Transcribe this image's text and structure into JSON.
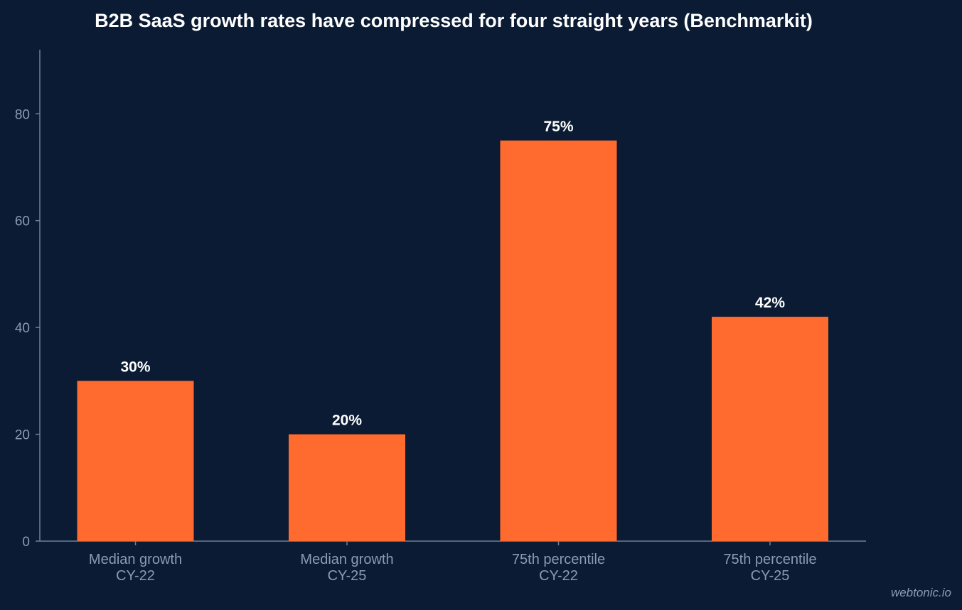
{
  "chart_data": {
    "type": "bar",
    "title": "B2B SaaS growth rates have compressed for four straight years (Benchmarkit)",
    "categories": [
      [
        "Median growth",
        "CY-22"
      ],
      [
        "Median growth",
        "CY-25"
      ],
      [
        "75th percentile",
        "CY-22"
      ],
      [
        "75th percentile",
        "CY-25"
      ]
    ],
    "values": [
      30,
      20,
      75,
      42
    ],
    "data_labels": [
      "30%",
      "20%",
      "75%",
      "42%"
    ],
    "xlabel": "",
    "ylabel": "",
    "ylim": [
      0,
      92
    ],
    "yticks": [
      0,
      20,
      40,
      60,
      80
    ],
    "grid": false,
    "legend": "none",
    "bar_color": "#ff6b2e",
    "background_color": "#0b1b33",
    "watermark": "webtonic.io"
  }
}
